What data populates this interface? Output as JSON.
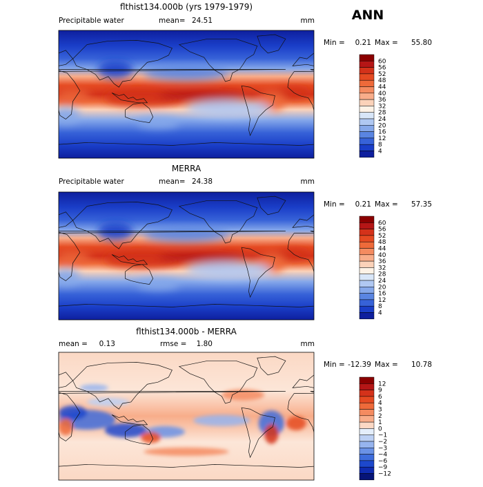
{
  "season": "ANN",
  "panels": [
    {
      "title": "flthist134.000b (yrs 1979-1979)",
      "variable": "Precipitable water",
      "mean_label": "mean=",
      "mean_value": "24.51",
      "rmse_label": "",
      "rmse_value": "",
      "units": "mm",
      "min_label": "Min =",
      "min_value": "0.21",
      "max_label": "Max =",
      "max_value": "55.80",
      "field": "model",
      "colorbar": {
        "labels": [
          "60",
          "56",
          "52",
          "48",
          "44",
          "40",
          "36",
          "32",
          "28",
          "24",
          "20",
          "16",
          "12",
          "8",
          "4"
        ],
        "colors": [
          "#8b0000",
          "#b51616",
          "#d4321a",
          "#e54a22",
          "#ee6a3a",
          "#f48b60",
          "#f8ad8a",
          "#fbd2b9",
          "#fdf2e6",
          "#d8e6f8",
          "#b0c8f2",
          "#86a8ea",
          "#5a85e2",
          "#3762d8",
          "#1a3ec8",
          "#0e1f9e"
        ]
      }
    },
    {
      "title": "MERRA",
      "variable": "Precipitable water",
      "mean_label": "mean=",
      "mean_value": "24.38",
      "rmse_label": "",
      "rmse_value": "",
      "units": "mm",
      "min_label": "Min =",
      "min_value": "0.21",
      "max_label": "Max =",
      "max_value": "57.35",
      "field": "obs",
      "colorbar": {
        "labels": [
          "60",
          "56",
          "52",
          "48",
          "44",
          "40",
          "36",
          "32",
          "28",
          "24",
          "20",
          "16",
          "12",
          "8",
          "4"
        ],
        "colors": [
          "#8b0000",
          "#b51616",
          "#d4321a",
          "#e54a22",
          "#ee6a3a",
          "#f48b60",
          "#f8ad8a",
          "#fbd2b9",
          "#fdf2e6",
          "#d8e6f8",
          "#b0c8f2",
          "#86a8ea",
          "#5a85e2",
          "#3762d8",
          "#1a3ec8",
          "#0e1f9e"
        ]
      }
    },
    {
      "title": "flthist134.000b - MERRA",
      "variable": "",
      "mean_label": "mean =",
      "mean_value": "0.13",
      "rmse_label": "rmse =",
      "rmse_value": "1.80",
      "units": "mm",
      "min_label": "Min =",
      "min_value": "-12.39",
      "max_label": "Max =",
      "max_value": "10.78",
      "field": "diff",
      "colorbar": {
        "labels": [
          "12",
          "9",
          "6",
          "4",
          "3",
          "2",
          "1",
          "0",
          "−1",
          "−2",
          "−3",
          "−4",
          "−6",
          "−9",
          "−12"
        ],
        "colors": [
          "#8b0000",
          "#b51616",
          "#d4321a",
          "#e54a22",
          "#ee6a3a",
          "#f48b60",
          "#f8ad8a",
          "#fbd8c4",
          "#e4eefb",
          "#bcd0f4",
          "#96b4ee",
          "#6a92e6",
          "#3e6ddc",
          "#1d48cc",
          "#0f2bb0",
          "#061478"
        ]
      }
    }
  ]
}
